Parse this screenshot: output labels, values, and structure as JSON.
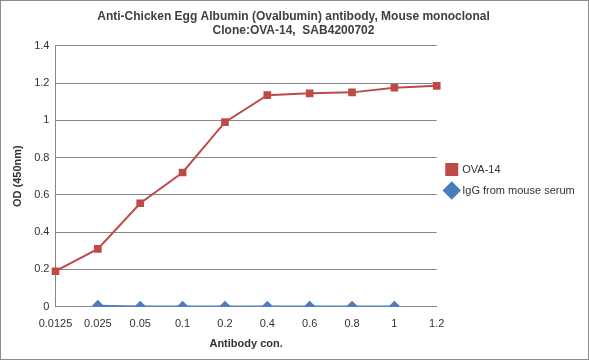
{
  "chart_data": {
    "type": "line",
    "title": [
      "Anti-Chicken Egg Albumin (Ovalbumin) antibody, Mouse monoclonal",
      "Clone:OVA-14,  SAB4200702"
    ],
    "x_label": "Antibody con.",
    "y_label": "OD (450nm)",
    "categories": [
      "0.0125",
      "0.025",
      "0.05",
      "0.1",
      "0.2",
      "0.4",
      "0.6",
      "0.8",
      "1",
      "1.2"
    ],
    "series": [
      {
        "name": "OVA-14",
        "color": "#be4b48",
        "marker": "square",
        "line_style": "solid",
        "values": [
          0.19,
          0.31,
          0.555,
          0.72,
          0.99,
          1.135,
          1.145,
          1.15,
          1.175,
          1.185
        ]
      },
      {
        "name": "IgG from mouse serum",
        "color": "#4a7ebb",
        "marker": "diamond",
        "line_style": "solid",
        "values": [
          null,
          0.005,
          0,
          0,
          0,
          0,
          0,
          0,
          0,
          null
        ]
      }
    ],
    "ylim": [
      0,
      1.4
    ],
    "yticks": [
      0,
      0.2,
      0.4,
      0.6,
      0.8,
      1,
      1.2,
      1.4
    ],
    "grid": true,
    "legend": "right"
  }
}
